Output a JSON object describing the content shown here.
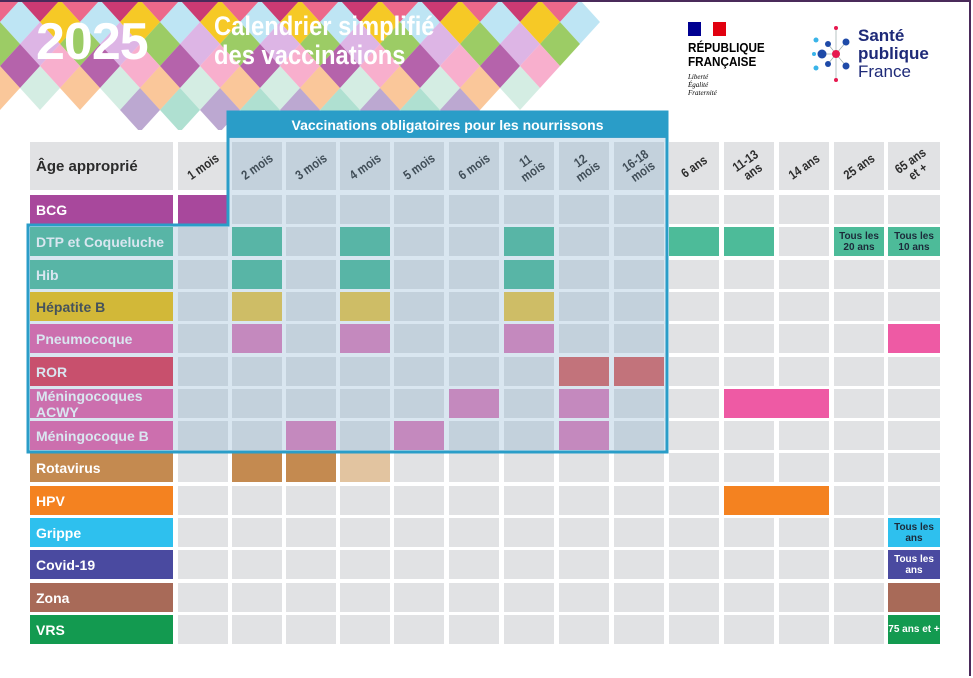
{
  "header": {
    "year": "2025",
    "title_line1": "Calendrier simplifié",
    "title_line2": "des vaccinations",
    "republique": {
      "line1": "RÉPUBLIQUE",
      "line2": "FRANÇAISE",
      "motto": [
        "Liberté",
        "Égalité",
        "Fraternité"
      ]
    },
    "sante_publique": {
      "line1": "Santé",
      "line2": "publique",
      "line3": "France"
    }
  },
  "banner": "Vaccinations obligatoires pour les nourrissons",
  "colors": {
    "banner": "#2a9dc8",
    "empty_cell": "#e1e2e4",
    "overlay_tint": "#9fc4dc"
  },
  "age_header": "Âge approprié",
  "columns": [
    "1 mois",
    "2 mois",
    "3 mois",
    "4 mois",
    "5 mois",
    "6 mois",
    "11 mois",
    "12 mois",
    "16-18 mois",
    "6 ans",
    "11-13 ans",
    "14 ans",
    "25 ans",
    "65 ans et +"
  ],
  "rows": [
    {
      "label": "BCG",
      "color": "#a8489c",
      "cells": [
        {
          "col": 0,
          "span": 1,
          "color": "#a8489c"
        }
      ]
    },
    {
      "label": "DTP et Coqueluche",
      "color": "#4dbb99",
      "cells": [
        {
          "col": 1,
          "span": 1,
          "color": "#4dbb99"
        },
        {
          "col": 3,
          "span": 1,
          "color": "#4dbb99"
        },
        {
          "col": 6,
          "span": 1,
          "color": "#4dbb99"
        },
        {
          "col": 9,
          "span": 1,
          "color": "#4dbb99"
        },
        {
          "col": 10,
          "span": 1,
          "color": "#4dbb99"
        },
        {
          "col": 12,
          "span": 1,
          "color": "#4dbb99",
          "text": "Tous les 20 ans",
          "textColor": "#1c2a3a"
        },
        {
          "col": 13,
          "span": 1,
          "color": "#4dbb99",
          "text": "Tous les 10 ans",
          "textColor": "#1c2a3a"
        }
      ]
    },
    {
      "label": "Hib",
      "color": "#4dbb99",
      "cells": [
        {
          "col": 1,
          "span": 1,
          "color": "#4dbb99"
        },
        {
          "col": 3,
          "span": 1,
          "color": "#4dbb99"
        },
        {
          "col": 6,
          "span": 1,
          "color": "#4dbb99"
        }
      ]
    },
    {
      "label": "Hépatite B",
      "color": "#f5c000",
      "textColor": "#333333",
      "cells": [
        {
          "col": 1,
          "span": 1,
          "color": "#f0c640"
        },
        {
          "col": 3,
          "span": 1,
          "color": "#f0c640"
        },
        {
          "col": 6,
          "span": 1,
          "color": "#f0c640"
        }
      ]
    },
    {
      "label": "Pneumocoque",
      "color": "#ee5aa4",
      "cells": [
        {
          "col": 1,
          "span": 1,
          "color": "#e27fba"
        },
        {
          "col": 3,
          "span": 1,
          "color": "#e27fba"
        },
        {
          "col": 6,
          "span": 1,
          "color": "#e27fba"
        },
        {
          "col": 13,
          "span": 1,
          "color": "#ee5aa4"
        }
      ]
    },
    {
      "label": "ROR",
      "color": "#e8304a",
      "cells": [
        {
          "col": 7,
          "span": 1,
          "color": "#e0605e"
        },
        {
          "col": 8,
          "span": 1,
          "color": "#e0605e"
        }
      ]
    },
    {
      "label": "Méningocoques ACWY",
      "color": "#ee5aa4",
      "cells": [
        {
          "col": 5,
          "span": 1,
          "color": "#e27fba"
        },
        {
          "col": 7,
          "span": 1,
          "color": "#e27fba"
        },
        {
          "col": 10,
          "span": 2,
          "color": "#ee5aa4"
        }
      ]
    },
    {
      "label": "Méningocoque B",
      "color": "#ee5aa4",
      "cells": [
        {
          "col": 2,
          "span": 1,
          "color": "#e27fba"
        },
        {
          "col": 4,
          "span": 1,
          "color": "#e27fba"
        },
        {
          "col": 7,
          "span": 1,
          "color": "#e27fba"
        }
      ]
    },
    {
      "label": "Rotavirus",
      "color": "#c48a50",
      "cells": [
        {
          "col": 1,
          "span": 1,
          "color": "#c48a50"
        },
        {
          "col": 2,
          "span": 1,
          "color": "#c48a50"
        },
        {
          "col": 3,
          "span": 1,
          "color": "#e2c4a0"
        }
      ]
    },
    {
      "label": "HPV",
      "color": "#f48220",
      "cells": [
        {
          "col": 10,
          "span": 2,
          "color": "#f48220"
        }
      ]
    },
    {
      "label": "Grippe",
      "color": "#2ec0ee",
      "cells": [
        {
          "col": 13,
          "span": 1,
          "color": "#2ec0ee",
          "text": "Tous les ans",
          "textColor": "#1c2a3a"
        }
      ]
    },
    {
      "label": "Covid-19",
      "color": "#4a4aa0",
      "cells": [
        {
          "col": 13,
          "span": 1,
          "color": "#4a4aa0",
          "text": "Tous les ans",
          "textColor": "#ffffff"
        }
      ]
    },
    {
      "label": "Zona",
      "color": "#a86a58",
      "cells": [
        {
          "col": 13,
          "span": 1,
          "color": "#a86a58"
        }
      ]
    },
    {
      "label": "VRS",
      "color": "#139a50",
      "cells": [
        {
          "col": 13,
          "span": 1,
          "color": "#139a50",
          "text": "75 ans et +",
          "textColor": "#ffffff"
        }
      ]
    }
  ]
}
